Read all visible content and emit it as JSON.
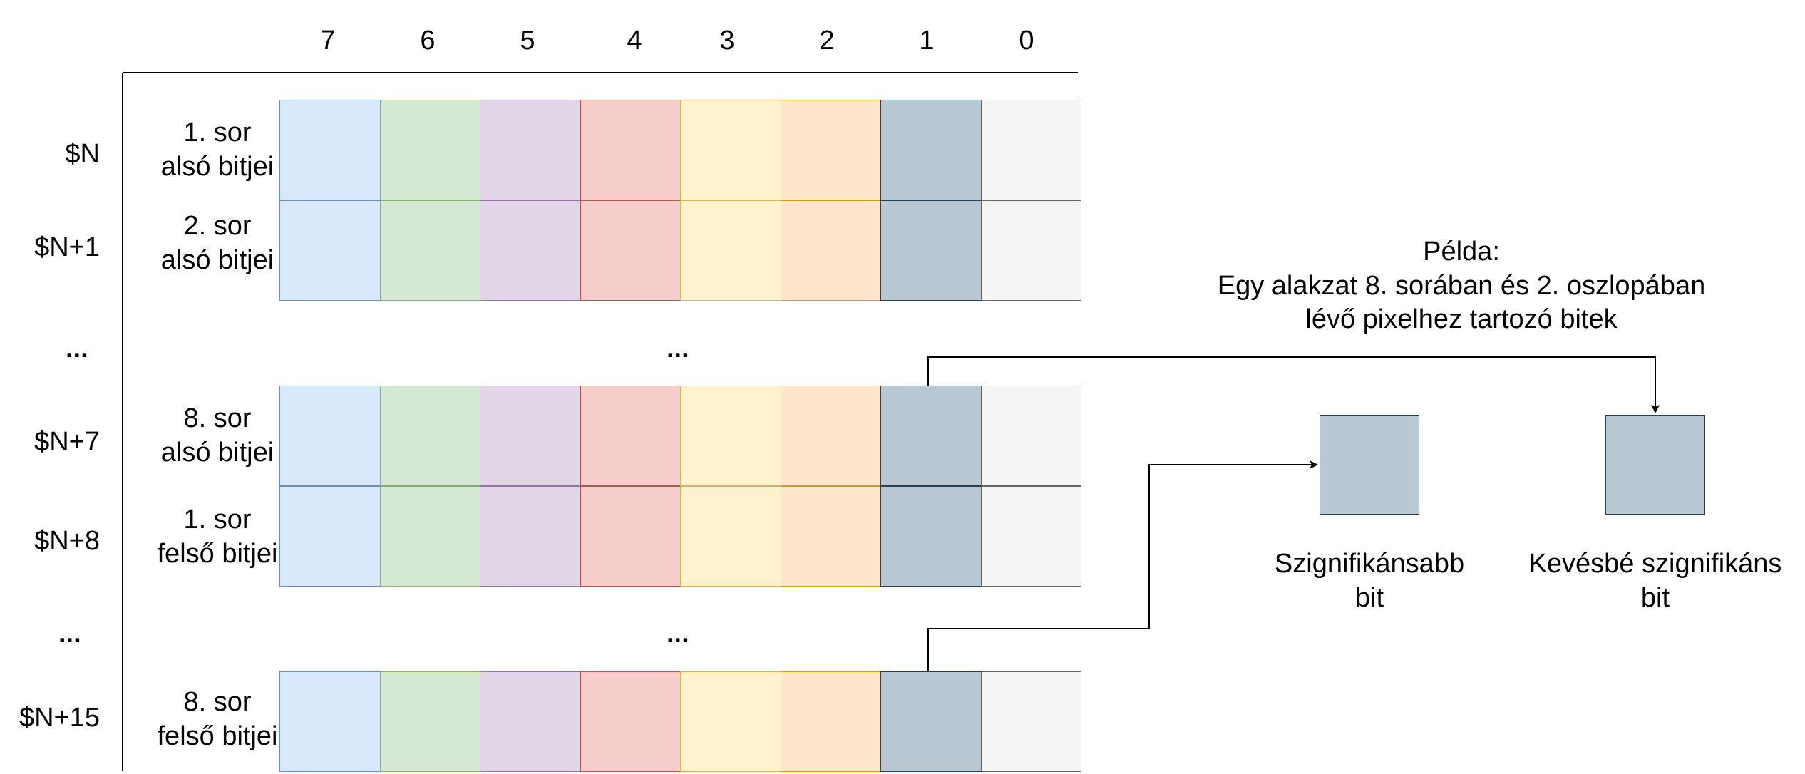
{
  "column_headers": [
    "7",
    "6",
    "5",
    "4",
    "3",
    "2",
    "1",
    "0"
  ],
  "colors": {
    "fills": [
      "#dae8fc",
      "#d5e8d4",
      "#e1d5e7",
      "#f8cecc",
      "#fff2cc",
      "#ffe6cc",
      "#bac8d3",
      "#f5f5f5"
    ],
    "strokes": [
      "#6c8ebf",
      "#82b366",
      "#9673a6",
      "#b85450",
      "#d6b656",
      "#d79b00",
      "#23445d",
      "#666666"
    ],
    "lines": "#000000"
  },
  "rows": [
    {
      "address": "$N",
      "label_line1": "1. sor",
      "label_line2": "alsó bitjei"
    },
    {
      "address": "$N+1",
      "label_line1": "2. sor",
      "label_line2": "alsó bitjei"
    },
    {
      "address": "$N+7",
      "label_line1": "8. sor",
      "label_line2": "alsó bitjei"
    },
    {
      "address": "$N+8",
      "label_line1": "1. sor",
      "label_line2": "felső bitjei"
    },
    {
      "address": "$N+15",
      "label_line1": "8. sor",
      "label_line2": "felső bitjei"
    }
  ],
  "ellipsis": "...",
  "example": {
    "line1": "Példa:",
    "line2": "Egy alakzat 8. sorában és 2. oszlopában",
    "line3": "lévő pixelhez tartozó bitek"
  },
  "msb": {
    "line1": "Szignifikánsabb",
    "line2": "bit"
  },
  "lsb": {
    "line1": "Kevésbé szignifikáns",
    "line2": "bit"
  }
}
